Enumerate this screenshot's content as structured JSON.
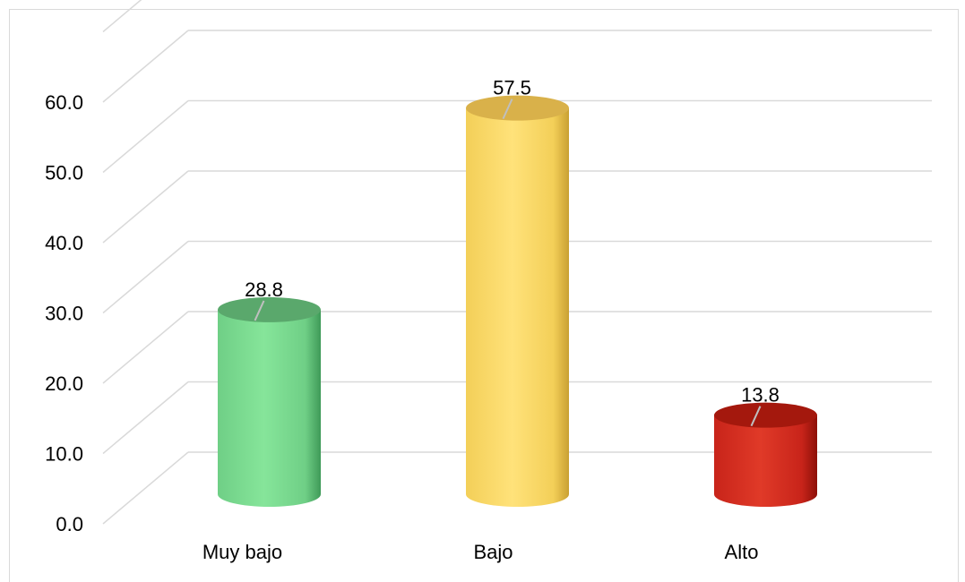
{
  "chart_data": {
    "type": "bar",
    "style": "3d-cylinder",
    "categories": [
      "Muy bajo",
      "Bajo",
      "Alto"
    ],
    "values": [
      28.8,
      57.5,
      13.8
    ],
    "value_labels": [
      "28.8",
      "57.5",
      "13.8"
    ],
    "y_ticks": [
      "0.0",
      "10.0",
      "20.0",
      "30.0",
      "40.0",
      "50.0",
      "60.0"
    ],
    "ylim": [
      0,
      70
    ],
    "grid": true,
    "legend": false,
    "colors": {
      "Muy bajo": {
        "light": "#86e59a",
        "mid": "#6fcf86",
        "dark": "#3f9a58",
        "top": "#5aa86c"
      },
      "Bajo": {
        "light": "#ffe27a",
        "mid": "#f3cf58",
        "dark": "#c9a032",
        "top": "#d9b14a"
      },
      "Alto": {
        "light": "#e03a28",
        "mid": "#c8241a",
        "dark": "#8d1008",
        "top": "#a4180d"
      }
    }
  }
}
